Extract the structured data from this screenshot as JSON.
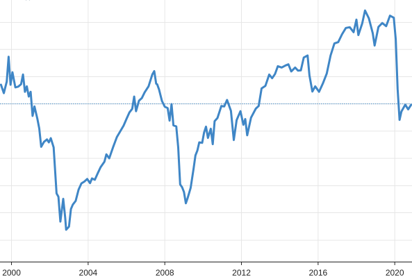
{
  "chart_data": {
    "type": "line",
    "title": "",
    "xlabel": "",
    "ylabel": "",
    "top_fragment": "(   )",
    "xlim": [
      1999.4,
      2020.9
    ],
    "ylim": [
      0,
      100
    ],
    "x_ticks": [
      2000,
      2004,
      2008,
      2012,
      2016,
      2020
    ],
    "x_tick_labels": [
      "2000",
      "2004",
      "2008",
      "2012",
      "2016",
      "2020"
    ],
    "y_gridlines": [
      8.2,
      18.7,
      29.0,
      39.5,
      49.9,
      60.3,
      70.7,
      81.1,
      91.4
    ],
    "reference_line": 60.3,
    "grid": true,
    "line_color": "#3f86c6",
    "ref_color": "#4a90c8",
    "series": [
      {
        "values": [
          [
            1999.45,
            67.6
          ],
          [
            1999.6,
            64.4
          ],
          [
            1999.75,
            68.8
          ],
          [
            1999.85,
            78.3
          ],
          [
            1999.95,
            67.6
          ],
          [
            2000.05,
            72.4
          ],
          [
            2000.2,
            66.6
          ],
          [
            2000.35,
            66.9
          ],
          [
            2000.5,
            67.8
          ],
          [
            2000.6,
            71.5
          ],
          [
            2000.7,
            64.9
          ],
          [
            2000.8,
            67.0
          ],
          [
            2000.9,
            63.1
          ],
          [
            2001.0,
            64.9
          ],
          [
            2001.1,
            55.7
          ],
          [
            2001.2,
            59.3
          ],
          [
            2001.35,
            54.6
          ],
          [
            2001.45,
            50.9
          ],
          [
            2001.55,
            43.9
          ],
          [
            2001.7,
            45.8
          ],
          [
            2001.85,
            46.7
          ],
          [
            2001.95,
            45.6
          ],
          [
            2002.05,
            47.2
          ],
          [
            2002.2,
            43.7
          ],
          [
            2002.35,
            26.1
          ],
          [
            2002.45,
            24.8
          ],
          [
            2002.55,
            15.3
          ],
          [
            2002.7,
            24.0
          ],
          [
            2002.8,
            16.9
          ],
          [
            2002.85,
            12.2
          ],
          [
            2003.0,
            13.4
          ],
          [
            2003.1,
            20.1
          ],
          [
            2003.2,
            21.8
          ],
          [
            2003.35,
            23.2
          ],
          [
            2003.5,
            27.5
          ],
          [
            2003.65,
            29.9
          ],
          [
            2003.8,
            30.6
          ],
          [
            2003.95,
            31.6
          ],
          [
            2004.1,
            30.0
          ],
          [
            2004.2,
            31.8
          ],
          [
            2004.35,
            31.3
          ],
          [
            2004.5,
            33.8
          ],
          [
            2004.65,
            36.1
          ],
          [
            2004.85,
            38.2
          ],
          [
            2004.95,
            41.0
          ],
          [
            2005.1,
            39.5
          ],
          [
            2005.3,
            43.7
          ],
          [
            2005.5,
            47.6
          ],
          [
            2005.65,
            49.5
          ],
          [
            2005.85,
            52.0
          ],
          [
            2006.0,
            54.5
          ],
          [
            2006.15,
            57.0
          ],
          [
            2006.3,
            58.4
          ],
          [
            2006.4,
            63.1
          ],
          [
            2006.5,
            57.5
          ],
          [
            2006.65,
            61.5
          ],
          [
            2006.8,
            62.5
          ],
          [
            2006.95,
            64.7
          ],
          [
            2007.15,
            67.0
          ],
          [
            2007.35,
            71.6
          ],
          [
            2007.45,
            72.8
          ],
          [
            2007.55,
            68.0
          ],
          [
            2007.6,
            67.8
          ],
          [
            2007.7,
            65.8
          ],
          [
            2007.85,
            61.4
          ],
          [
            2008.0,
            59.2
          ],
          [
            2008.15,
            58.7
          ],
          [
            2008.25,
            53.9
          ],
          [
            2008.35,
            60.2
          ],
          [
            2008.45,
            52.1
          ],
          [
            2008.6,
            51.7
          ],
          [
            2008.7,
            43.7
          ],
          [
            2008.8,
            29.5
          ],
          [
            2008.9,
            28.5
          ],
          [
            2009.0,
            26.6
          ],
          [
            2009.1,
            22.3
          ],
          [
            2009.2,
            24.5
          ],
          [
            2009.35,
            28.2
          ],
          [
            2009.5,
            35.5
          ],
          [
            2009.6,
            40.6
          ],
          [
            2009.7,
            42.5
          ],
          [
            2009.8,
            45.6
          ],
          [
            2009.95,
            45.4
          ],
          [
            2010.05,
            49.3
          ],
          [
            2010.15,
            51.6
          ],
          [
            2010.25,
            47.3
          ],
          [
            2010.4,
            50.8
          ],
          [
            2010.5,
            44.9
          ],
          [
            2010.6,
            53.7
          ],
          [
            2010.75,
            54.9
          ],
          [
            2010.95,
            59.5
          ],
          [
            2011.1,
            59.3
          ],
          [
            2011.25,
            61.8
          ],
          [
            2011.45,
            57.6
          ],
          [
            2011.6,
            46.5
          ],
          [
            2011.75,
            54.1
          ],
          [
            2011.95,
            57.5
          ],
          [
            2012.1,
            52.3
          ],
          [
            2012.2,
            54.5
          ],
          [
            2012.3,
            48.3
          ],
          [
            2012.5,
            55.0
          ],
          [
            2012.75,
            58.5
          ],
          [
            2012.9,
            59.5
          ],
          [
            2013.05,
            66.2
          ],
          [
            2013.25,
            67.2
          ],
          [
            2013.45,
            71.5
          ],
          [
            2013.6,
            70.1
          ],
          [
            2013.75,
            71.7
          ],
          [
            2013.9,
            74.7
          ],
          [
            2014.1,
            74.2
          ],
          [
            2014.3,
            75.0
          ],
          [
            2014.45,
            75.4
          ],
          [
            2014.6,
            72.7
          ],
          [
            2014.8,
            74.2
          ],
          [
            2014.95,
            73.0
          ],
          [
            2015.1,
            73.1
          ],
          [
            2015.25,
            78.0
          ],
          [
            2015.45,
            78.8
          ],
          [
            2015.55,
            71.2
          ],
          [
            2015.7,
            65.0
          ],
          [
            2015.85,
            67.0
          ],
          [
            2016.05,
            64.9
          ],
          [
            2016.25,
            68.1
          ],
          [
            2016.45,
            71.9
          ],
          [
            2016.65,
            78.8
          ],
          [
            2016.85,
            83.4
          ],
          [
            2017.05,
            83.9
          ],
          [
            2017.25,
            86.9
          ],
          [
            2017.45,
            89.3
          ],
          [
            2017.65,
            89.6
          ],
          [
            2017.85,
            87.7
          ],
          [
            2018.0,
            92.5
          ],
          [
            2018.1,
            86.6
          ],
          [
            2018.3,
            91.0
          ],
          [
            2018.45,
            96.0
          ],
          [
            2018.65,
            93.0
          ],
          [
            2018.85,
            87.3
          ],
          [
            2018.95,
            82.6
          ],
          [
            2019.15,
            89.7
          ],
          [
            2019.35,
            91.2
          ],
          [
            2019.55,
            90.0
          ],
          [
            2019.75,
            94.0
          ],
          [
            2019.95,
            93.2
          ],
          [
            2020.05,
            85.0
          ],
          [
            2020.15,
            66.0
          ],
          [
            2020.25,
            54.2
          ],
          [
            2020.35,
            57.4
          ],
          [
            2020.55,
            60.0
          ],
          [
            2020.7,
            58.2
          ],
          [
            2020.85,
            59.9
          ]
        ]
      }
    ]
  }
}
